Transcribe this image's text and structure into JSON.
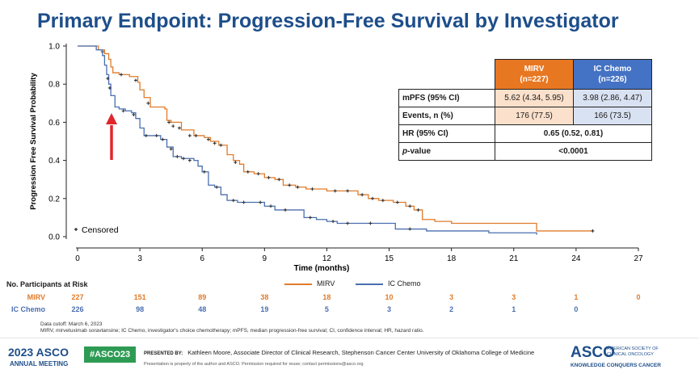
{
  "title": "Primary Endpoint: Progression-Free Survival by Investigator",
  "chart_data": {
    "type": "line",
    "title": "Primary Endpoint: Progression-Free Survival by Investigator",
    "xlabel": "Time (months)",
    "ylabel": "Progression Free Survival Probability",
    "xlim": [
      0,
      27
    ],
    "ylim": [
      0,
      1.0
    ],
    "x_ticks": [
      "0",
      "3",
      "6",
      "9",
      "12",
      "15",
      "18",
      "21",
      "24",
      "27"
    ],
    "y_ticks": [
      "0.0",
      "0.2",
      "0.4",
      "0.6",
      "0.8",
      "1.0"
    ],
    "censored_label": "Censored",
    "legend": [
      "MIRV",
      "IC Chemo"
    ],
    "series": [
      {
        "name": "MIRV",
        "color": "#e07b2a",
        "points": [
          [
            0,
            1.0
          ],
          [
            0.6,
            1.0
          ],
          [
            1.0,
            0.98
          ],
          [
            1.3,
            0.96
          ],
          [
            1.5,
            0.93
          ],
          [
            1.6,
            0.89
          ],
          [
            1.7,
            0.86
          ],
          [
            2.0,
            0.85
          ],
          [
            2.5,
            0.84
          ],
          [
            2.9,
            0.81
          ],
          [
            3.0,
            0.77
          ],
          [
            3.2,
            0.73
          ],
          [
            3.5,
            0.68
          ],
          [
            4.2,
            0.67
          ],
          [
            4.3,
            0.61
          ],
          [
            4.5,
            0.6
          ],
          [
            5.0,
            0.56
          ],
          [
            5.6,
            0.53
          ],
          [
            6.1,
            0.52
          ],
          [
            6.4,
            0.5
          ],
          [
            6.8,
            0.48
          ],
          [
            7.2,
            0.43
          ],
          [
            7.5,
            0.4
          ],
          [
            7.8,
            0.38
          ],
          [
            8.0,
            0.34
          ],
          [
            8.5,
            0.33
          ],
          [
            9.0,
            0.31
          ],
          [
            9.5,
            0.3
          ],
          [
            9.9,
            0.27
          ],
          [
            10.5,
            0.26
          ],
          [
            11.0,
            0.25
          ],
          [
            12.0,
            0.24
          ],
          [
            13.5,
            0.22
          ],
          [
            14.0,
            0.2
          ],
          [
            14.5,
            0.19
          ],
          [
            15.2,
            0.18
          ],
          [
            15.8,
            0.16
          ],
          [
            16.2,
            0.14
          ],
          [
            16.6,
            0.09
          ],
          [
            17.2,
            0.08
          ],
          [
            18.0,
            0.07
          ],
          [
            22.0,
            0.07
          ],
          [
            22.1,
            0.03
          ],
          [
            24.8,
            0.03
          ]
        ],
        "censored": [
          [
            1.2,
            0.97
          ],
          [
            2.1,
            0.85
          ],
          [
            2.8,
            0.82
          ],
          [
            3.4,
            0.7
          ],
          [
            4.4,
            0.6
          ],
          [
            4.6,
            0.58
          ],
          [
            4.9,
            0.57
          ],
          [
            5.4,
            0.53
          ],
          [
            5.7,
            0.53
          ],
          [
            6.3,
            0.51
          ],
          [
            6.6,
            0.49
          ],
          [
            6.9,
            0.48
          ],
          [
            7.6,
            0.39
          ],
          [
            8.2,
            0.34
          ],
          [
            8.7,
            0.33
          ],
          [
            9.2,
            0.31
          ],
          [
            9.7,
            0.3
          ],
          [
            10.2,
            0.27
          ],
          [
            10.6,
            0.26
          ],
          [
            11.3,
            0.25
          ],
          [
            12.4,
            0.24
          ],
          [
            13.0,
            0.24
          ],
          [
            13.7,
            0.22
          ],
          [
            14.2,
            0.2
          ],
          [
            14.7,
            0.19
          ],
          [
            15.4,
            0.18
          ],
          [
            16.0,
            0.16
          ],
          [
            16.4,
            0.14
          ],
          [
            24.8,
            0.03
          ]
        ]
      },
      {
        "name": "IC Chemo",
        "color": "#4a6fb0",
        "points": [
          [
            0,
            1.0
          ],
          [
            0.5,
            1.0
          ],
          [
            0.9,
            0.98
          ],
          [
            1.2,
            0.95
          ],
          [
            1.3,
            0.9
          ],
          [
            1.4,
            0.85
          ],
          [
            1.5,
            0.8
          ],
          [
            1.6,
            0.74
          ],
          [
            1.8,
            0.68
          ],
          [
            2.0,
            0.67
          ],
          [
            2.3,
            0.66
          ],
          [
            2.6,
            0.65
          ],
          [
            2.8,
            0.62
          ],
          [
            3.0,
            0.57
          ],
          [
            3.2,
            0.53
          ],
          [
            3.6,
            0.53
          ],
          [
            4.0,
            0.51
          ],
          [
            4.3,
            0.47
          ],
          [
            4.6,
            0.42
          ],
          [
            5.0,
            0.41
          ],
          [
            5.6,
            0.4
          ],
          [
            5.8,
            0.37
          ],
          [
            6.0,
            0.34
          ],
          [
            6.3,
            0.27
          ],
          [
            6.6,
            0.26
          ],
          [
            6.9,
            0.22
          ],
          [
            7.2,
            0.19
          ],
          [
            7.7,
            0.18
          ],
          [
            8.5,
            0.18
          ],
          [
            9.0,
            0.16
          ],
          [
            9.5,
            0.14
          ],
          [
            10.4,
            0.14
          ],
          [
            10.9,
            0.1
          ],
          [
            11.5,
            0.09
          ],
          [
            12.0,
            0.08
          ],
          [
            12.5,
            0.07
          ],
          [
            15.0,
            0.07
          ],
          [
            15.3,
            0.04
          ],
          [
            16.5,
            0.04
          ],
          [
            16.8,
            0.03
          ],
          [
            19.5,
            0.03
          ],
          [
            19.8,
            0.02
          ],
          [
            22.0,
            0.02
          ],
          [
            22.1,
            0.01
          ]
        ],
        "censored": [
          [
            1.45,
            0.83
          ],
          [
            1.55,
            0.78
          ],
          [
            2.2,
            0.66
          ],
          [
            2.7,
            0.64
          ],
          [
            3.3,
            0.53
          ],
          [
            3.8,
            0.53
          ],
          [
            4.1,
            0.51
          ],
          [
            4.5,
            0.46
          ],
          [
            4.8,
            0.42
          ],
          [
            5.1,
            0.41
          ],
          [
            5.4,
            0.4
          ],
          [
            6.1,
            0.34
          ],
          [
            6.7,
            0.26
          ],
          [
            7.5,
            0.19
          ],
          [
            8.0,
            0.18
          ],
          [
            8.8,
            0.18
          ],
          [
            9.3,
            0.16
          ],
          [
            10.0,
            0.14
          ],
          [
            11.2,
            0.1
          ],
          [
            12.3,
            0.08
          ],
          [
            13.0,
            0.07
          ],
          [
            14.1,
            0.07
          ],
          [
            16.0,
            0.04
          ]
        ]
      }
    ]
  },
  "results_table": {
    "headers": [
      {
        "label": "MIRV",
        "sub": "(n=227)",
        "color": "#e87722"
      },
      {
        "label": "IC Chemo",
        "sub": "(n=226)",
        "color": "#4472c4"
      }
    ],
    "rows": [
      {
        "label": "mPFS (95% CI)",
        "mirv": "5.62 (4.34, 5.95)",
        "ic": "3.98 (2.86, 4.47)"
      },
      {
        "label": "Events, n (%)",
        "mirv": "176 (77.5)",
        "ic": "166 (73.5)"
      },
      {
        "label": "HR (95% CI)",
        "span": "0.65 (0.52, 0.81)"
      },
      {
        "label_italic": "p",
        "label_rest": "-value",
        "span": "<0.0001"
      }
    ]
  },
  "risk_table": {
    "title": "No. Participants at Risk",
    "rows": [
      {
        "label": "MIRV",
        "color": "#e07b2a",
        "values": [
          "227",
          "151",
          "89",
          "38",
          "18",
          "10",
          "3",
          "3",
          "1",
          "0"
        ]
      },
      {
        "label": "IC Chemo",
        "color": "#4a6fb0",
        "values": [
          "226",
          "98",
          "48",
          "19",
          "5",
          "3",
          "2",
          "1",
          "0"
        ]
      }
    ]
  },
  "footnotes": {
    "cutoff": "Data cutoff: March 6, 2023",
    "abbrev": "MIRV, mirvetuximab soravtansine; IC Chemo, investigator's choice chemotherapy; mPFS, median progression-free survival; CI, confidence interval; HR, hazard ratio."
  },
  "footer": {
    "year_asco": "2023 ASCO",
    "annual_meeting": "ANNUAL MEETING",
    "hashtag": "#ASCO23",
    "presented_by_label": "PRESENTED BY:",
    "presenter": "Kathleen Moore, Associate Director of Clinical Research, Stephenson Cancer Center University of Oklahoma College of Medicine",
    "notice": "Presentation is property of the author and ASCO. Permission required for reuse; contact permissions@asco.org",
    "logo": "ASCO",
    "logo_sub": "AMERICAN SOCIETY OF CLINICAL ONCOLOGY",
    "tagline": "KNOWLEDGE CONQUERS CANCER"
  },
  "colors": {
    "title": "#1d4e8a",
    "mirv": "#e07b2a",
    "ic": "#4a6fb0",
    "arrow": "#e0262b"
  }
}
